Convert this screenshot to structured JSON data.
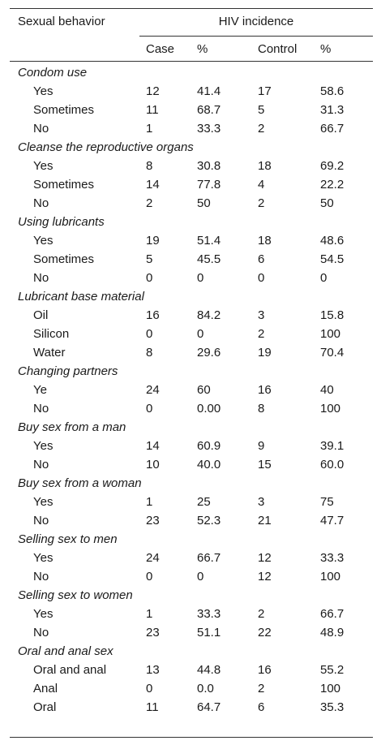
{
  "header": {
    "label": "Sexual behavior",
    "group": "HIV incidence",
    "columns": [
      "Case",
      "%",
      "Control",
      "%"
    ]
  },
  "groups": [
    {
      "title": "Condom use",
      "rows": [
        {
          "label": "Yes",
          "values": [
            "12",
            "41.4",
            "17",
            "58.6"
          ]
        },
        {
          "label": "Sometimes",
          "values": [
            "11",
            "68.7",
            "5",
            "31.3"
          ]
        },
        {
          "label": "No",
          "values": [
            "1",
            "33.3",
            "2",
            "66.7"
          ]
        }
      ]
    },
    {
      "title": "Cleanse the reproductive organs",
      "rows": [
        {
          "label": "Yes",
          "values": [
            "8",
            "30.8",
            "18",
            "69.2"
          ]
        },
        {
          "label": "Sometimes",
          "values": [
            "14",
            "77.8",
            "4",
            "22.2"
          ]
        },
        {
          "label": "No",
          "values": [
            "2",
            "50",
            "2",
            "50"
          ]
        }
      ]
    },
    {
      "title": "Using lubricants",
      "rows": [
        {
          "label": "Yes",
          "values": [
            "19",
            "51.4",
            "18",
            "48.6"
          ]
        },
        {
          "label": "Sometimes",
          "values": [
            "5",
            "45.5",
            "6",
            "54.5"
          ]
        },
        {
          "label": "No",
          "values": [
            "0",
            "0",
            "0",
            "0"
          ]
        }
      ]
    },
    {
      "title": "Lubricant base material",
      "rows": [
        {
          "label": "Oil",
          "values": [
            "16",
            "84.2",
            "3",
            "15.8"
          ]
        },
        {
          "label": "Silicon",
          "values": [
            "0",
            "0",
            "2",
            "100"
          ]
        },
        {
          "label": "Water",
          "values": [
            "8",
            "29.6",
            "19",
            "70.4"
          ]
        }
      ]
    },
    {
      "title": "Changing partners",
      "rows": [
        {
          "label": "Ye",
          "values": [
            "24",
            "60",
            "16",
            "40"
          ]
        },
        {
          "label": "No",
          "values": [
            "0",
            "0.00",
            "8",
            "100"
          ]
        }
      ]
    },
    {
      "title": "Buy sex from a man",
      "rows": [
        {
          "label": "Yes",
          "values": [
            "14",
            "60.9",
            "9",
            "39.1"
          ]
        },
        {
          "label": "No",
          "values": [
            "10",
            "40.0",
            "15",
            "60.0"
          ]
        }
      ]
    },
    {
      "title": "Buy sex from a woman",
      "rows": [
        {
          "label": "Yes",
          "values": [
            "1",
            "25",
            "3",
            "75"
          ]
        },
        {
          "label": "No",
          "values": [
            "23",
            "52.3",
            "21",
            "47.7"
          ]
        }
      ]
    },
    {
      "title": "Selling sex to men",
      "rows": [
        {
          "label": "Yes",
          "values": [
            "24",
            "66.7",
            "12",
            "33.3"
          ]
        },
        {
          "label": "No",
          "values": [
            "0",
            "0",
            "12",
            "100"
          ]
        }
      ]
    },
    {
      "title": "Selling sex to women",
      "rows": [
        {
          "label": "Yes",
          "values": [
            "1",
            "33.3",
            "2",
            "66.7"
          ]
        },
        {
          "label": "No",
          "values": [
            "23",
            "51.1",
            "22",
            "48.9"
          ]
        }
      ]
    },
    {
      "title": "Oral and anal sex",
      "rows": [
        {
          "label": "Oral and anal",
          "values": [
            "13",
            "44.8",
            "16",
            "55.2"
          ]
        },
        {
          "label": "Anal",
          "values": [
            "0",
            "0.0",
            "2",
            "100"
          ]
        },
        {
          "label": "Oral",
          "values": [
            "11",
            "64.7",
            "6",
            "35.3"
          ]
        }
      ]
    }
  ]
}
